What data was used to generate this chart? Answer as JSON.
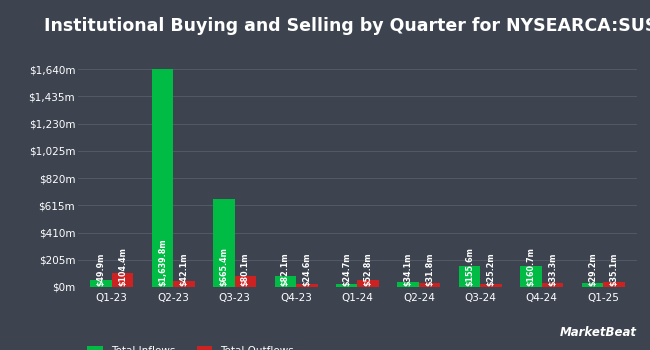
{
  "title": "Institutional Buying and Selling by Quarter for NYSEARCA:SUSA",
  "quarters": [
    "Q1-23",
    "Q2-23",
    "Q3-23",
    "Q4-23",
    "Q1-24",
    "Q2-24",
    "Q3-24",
    "Q4-24",
    "Q1-25"
  ],
  "inflows": [
    49.9,
    1639.8,
    665.4,
    82.1,
    24.7,
    34.1,
    155.6,
    160.7,
    29.2
  ],
  "outflows": [
    104.4,
    42.1,
    80.1,
    24.6,
    52.8,
    31.8,
    25.2,
    33.3,
    35.1
  ],
  "inflow_labels": [
    "$49.9m",
    "$1,639.8m",
    "$665.4m",
    "$82.1m",
    "$24.7m",
    "$34.1m",
    "$155.6m",
    "$160.7m",
    "$29.2m"
  ],
  "outflow_labels": [
    "$104.4m",
    "$42.1m",
    "$80.1m",
    "$24.6m",
    "$52.8m",
    "$31.8m",
    "$25.2m",
    "$33.3m",
    "$35.1m"
  ],
  "inflow_color": "#00bb44",
  "outflow_color": "#cc2222",
  "bg_color": "#3d4450",
  "grid_color": "#555d6b",
  "text_color": "#ffffff",
  "bar_width": 0.35,
  "yticks": [
    0,
    205,
    410,
    615,
    820,
    1025,
    1230,
    1435,
    1640
  ],
  "ytick_labels": [
    "$0m",
    "$205m",
    "$410m",
    "$615m",
    "$820m",
    "$1,025m",
    "$1,230m",
    "$1,435m",
    "$1,640m"
  ],
  "ylim": [
    0,
    1845
  ],
  "title_fontsize": 12.5,
  "label_fontsize": 5.8,
  "tick_fontsize": 7.5,
  "legend_fontsize": 7.5
}
